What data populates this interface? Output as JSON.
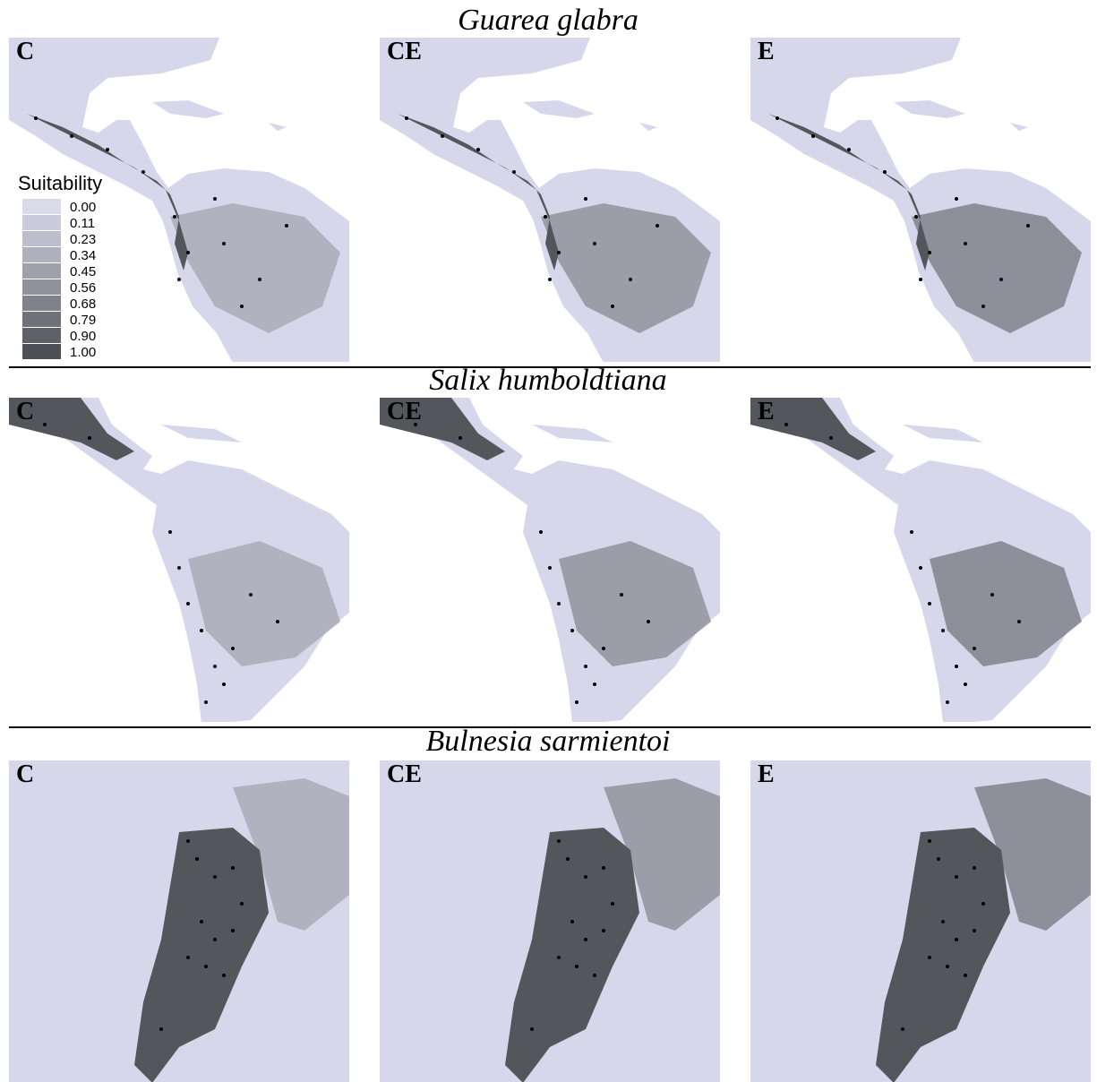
{
  "rows": [
    {
      "species": "Guarea glabra",
      "panels": [
        "C",
        "CE",
        "E"
      ]
    },
    {
      "species": "Salix humboldtiana",
      "panels": [
        "C",
        "CE",
        "E"
      ]
    },
    {
      "species": "Bulnesia sarmientoi",
      "panels": [
        "C",
        "CE",
        "E"
      ]
    }
  ],
  "legend": {
    "title": "Suitability",
    "entries": [
      {
        "label": "0.00",
        "color": "#d9daea"
      },
      {
        "label": "0.11",
        "color": "#cbcbdb"
      },
      {
        "label": "0.23",
        "color": "#bdbdcc"
      },
      {
        "label": "0.34",
        "color": "#afafbd"
      },
      {
        "label": "0.45",
        "color": "#a0a0ad"
      },
      {
        "label": "0.56",
        "color": "#91919c"
      },
      {
        "label": "0.68",
        "color": "#81818b"
      },
      {
        "label": "0.79",
        "color": "#71717a"
      },
      {
        "label": "0.90",
        "color": "#606068"
      },
      {
        "label": "1.00",
        "color": "#4e4e55"
      }
    ]
  }
}
